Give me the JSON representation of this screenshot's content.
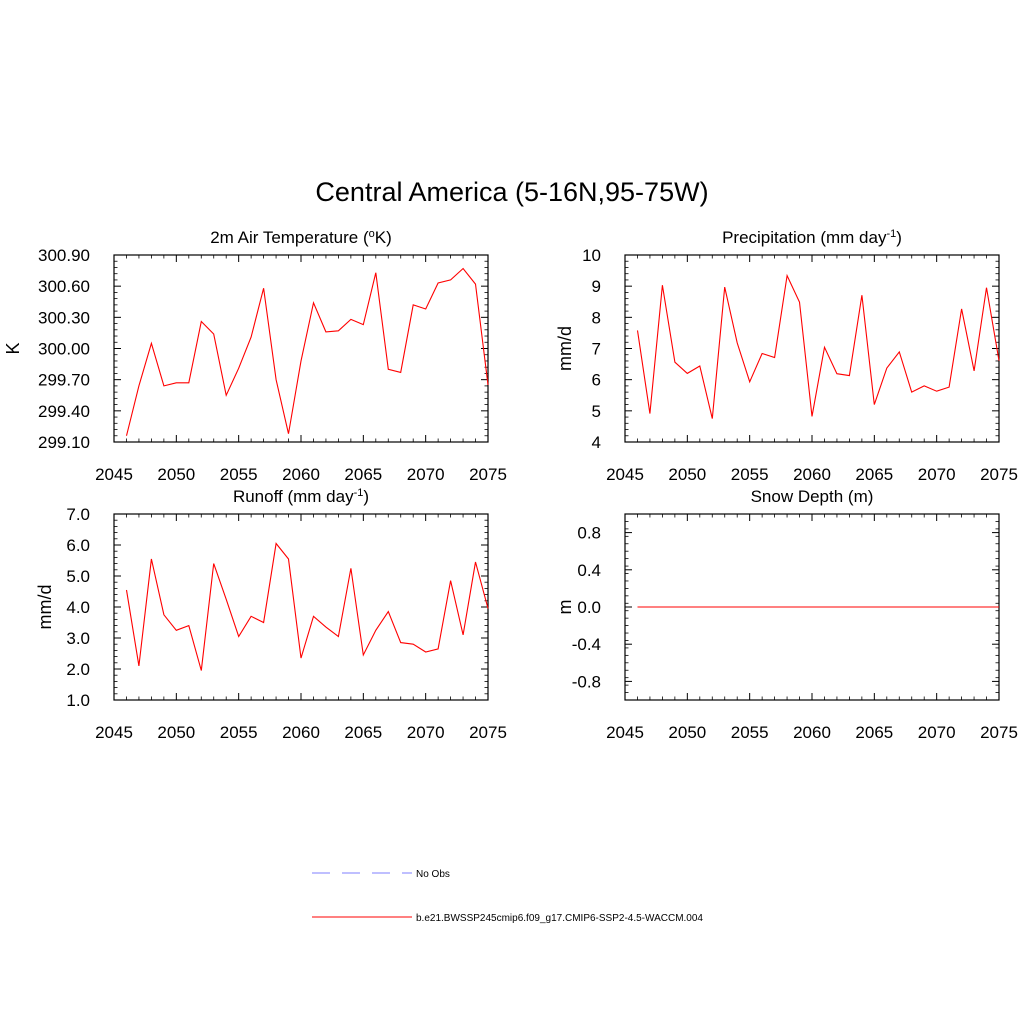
{
  "figure": {
    "title": "Central America (5-16N,95-75W)",
    "line_color": "#ff0000",
    "obs_color": "#9999ff"
  },
  "legend": {
    "obs_label": "No Obs",
    "model_label": "b.e21.BWSSP245cmip6.f09_g17.CMIP6-SSP2-4.5-WACCM.004"
  },
  "chart_data": [
    {
      "type": "line",
      "title": "2m Air Temperature (°K)",
      "title_parts": {
        "pre": "2m Air Temperature (",
        "sup": "o",
        "post": "K)"
      },
      "xlabel": "",
      "ylabel": "K",
      "xlim": [
        2045,
        2075
      ],
      "ylim": [
        299.1,
        300.9
      ],
      "xticks": [
        2045,
        2050,
        2055,
        2060,
        2065,
        2070,
        2075
      ],
      "xtick_labels": [
        "2045",
        "2050",
        "2055",
        "2060",
        "2065",
        "2070",
        "2075"
      ],
      "yticks": [
        299.1,
        299.4,
        299.7,
        300.0,
        300.3,
        300.6,
        300.9
      ],
      "ytick_labels": [
        "299.10",
        "299.40",
        "299.70",
        "300.00",
        "300.30",
        "300.60",
        "300.90"
      ],
      "x": [
        2046,
        2047,
        2048,
        2049,
        2050,
        2051,
        2052,
        2053,
        2054,
        2055,
        2056,
        2057,
        2058,
        2059,
        2060,
        2061,
        2062,
        2063,
        2064,
        2065,
        2066,
        2067,
        2068,
        2069,
        2070,
        2071,
        2072,
        2073,
        2074,
        2075
      ],
      "series": [
        {
          "values": [
            299.16,
            299.64,
            300.05,
            299.64,
            299.67,
            299.67,
            300.26,
            300.14,
            299.55,
            299.81,
            300.11,
            300.58,
            299.7,
            299.18,
            299.88,
            300.44,
            300.16,
            300.17,
            300.28,
            300.23,
            300.73,
            299.8,
            299.77,
            300.42,
            300.38,
            300.63,
            300.66,
            300.77,
            300.62,
            299.65
          ]
        }
      ]
    },
    {
      "type": "line",
      "title": "Precipitation (mm day-1)",
      "title_parts": {
        "pre": "Precipitation (mm day",
        "sup": "-1",
        "post": ")"
      },
      "xlabel": "",
      "ylabel": "mm/d",
      "xlim": [
        2045,
        2075
      ],
      "ylim": [
        4,
        10
      ],
      "xticks": [
        2045,
        2050,
        2055,
        2060,
        2065,
        2070,
        2075
      ],
      "xtick_labels": [
        "2045",
        "2050",
        "2055",
        "2060",
        "2065",
        "2070",
        "2075"
      ],
      "yticks": [
        4,
        5,
        6,
        7,
        8,
        9,
        10
      ],
      "ytick_labels": [
        "4",
        "5",
        "6",
        "7",
        "8",
        "9",
        "10"
      ],
      "x": [
        2046,
        2047,
        2048,
        2049,
        2050,
        2051,
        2052,
        2053,
        2054,
        2055,
        2056,
        2057,
        2058,
        2059,
        2060,
        2061,
        2062,
        2063,
        2064,
        2065,
        2066,
        2067,
        2068,
        2069,
        2070,
        2071,
        2072,
        2073,
        2074,
        2075
      ],
      "series": [
        {
          "values": [
            7.58,
            4.91,
            9.03,
            6.56,
            6.2,
            6.44,
            4.75,
            8.97,
            7.18,
            5.93,
            6.84,
            6.71,
            9.34,
            8.49,
            4.82,
            7.04,
            6.19,
            6.13,
            8.71,
            5.2,
            6.37,
            6.89,
            5.6,
            5.8,
            5.63,
            5.76,
            8.27,
            6.28,
            8.95,
            6.61
          ]
        }
      ]
    },
    {
      "type": "line",
      "title": "Runoff (mm day-1)",
      "title_parts": {
        "pre": "Runoff (mm day",
        "sup": "-1",
        "post": ")"
      },
      "xlabel": "",
      "ylabel": "mm/d",
      "xlim": [
        2045,
        2075
      ],
      "ylim": [
        1,
        7
      ],
      "xticks": [
        2045,
        2050,
        2055,
        2060,
        2065,
        2070,
        2075
      ],
      "xtick_labels": [
        "2045",
        "2050",
        "2055",
        "2060",
        "2065",
        "2070",
        "2075"
      ],
      "yticks": [
        1,
        2,
        3,
        4,
        5,
        6,
        7
      ],
      "ytick_labels": [
        "1.0",
        "2.0",
        "3.0",
        "4.0",
        "5.0",
        "6.0",
        "7.0"
      ],
      "x": [
        2046,
        2047,
        2048,
        2049,
        2050,
        2051,
        2052,
        2053,
        2054,
        2055,
        2056,
        2057,
        2058,
        2059,
        2060,
        2061,
        2062,
        2063,
        2064,
        2065,
        2066,
        2067,
        2068,
        2069,
        2070,
        2071,
        2072,
        2073,
        2074,
        2075
      ],
      "series": [
        {
          "values": [
            4.55,
            2.1,
            5.55,
            3.75,
            3.25,
            3.4,
            1.95,
            5.4,
            4.25,
            3.05,
            3.7,
            3.5,
            6.05,
            5.55,
            2.35,
            3.7,
            3.35,
            3.05,
            5.25,
            2.45,
            3.25,
            3.85,
            2.85,
            2.8,
            2.55,
            2.65,
            4.85,
            3.1,
            5.45,
            3.95
          ]
        }
      ]
    },
    {
      "type": "line",
      "title": "Snow Depth (m)",
      "title_parts": {
        "pre": "Snow Depth (m)",
        "sup": "",
        "post": ""
      },
      "xlabel": "",
      "ylabel": "m",
      "xlim": [
        2045,
        2075
      ],
      "ylim": [
        -1,
        1
      ],
      "xticks": [
        2045,
        2050,
        2055,
        2060,
        2065,
        2070,
        2075
      ],
      "xtick_labels": [
        "2045",
        "2050",
        "2055",
        "2060",
        "2065",
        "2070",
        "2075"
      ],
      "yticks": [
        -0.8,
        -0.4,
        0.0,
        0.4,
        0.8
      ],
      "ytick_labels": [
        "-0.8",
        "-0.4",
        "0.0",
        "0.4",
        "0.8"
      ],
      "x": [
        2046,
        2047,
        2048,
        2049,
        2050,
        2051,
        2052,
        2053,
        2054,
        2055,
        2056,
        2057,
        2058,
        2059,
        2060,
        2061,
        2062,
        2063,
        2064,
        2065,
        2066,
        2067,
        2068,
        2069,
        2070,
        2071,
        2072,
        2073,
        2074,
        2075
      ],
      "series": [
        {
          "values": [
            0,
            0,
            0,
            0,
            0,
            0,
            0,
            0,
            0,
            0,
            0,
            0,
            0,
            0,
            0,
            0,
            0,
            0,
            0,
            0,
            0,
            0,
            0,
            0,
            0,
            0,
            0,
            0,
            0,
            0
          ]
        }
      ]
    }
  ]
}
